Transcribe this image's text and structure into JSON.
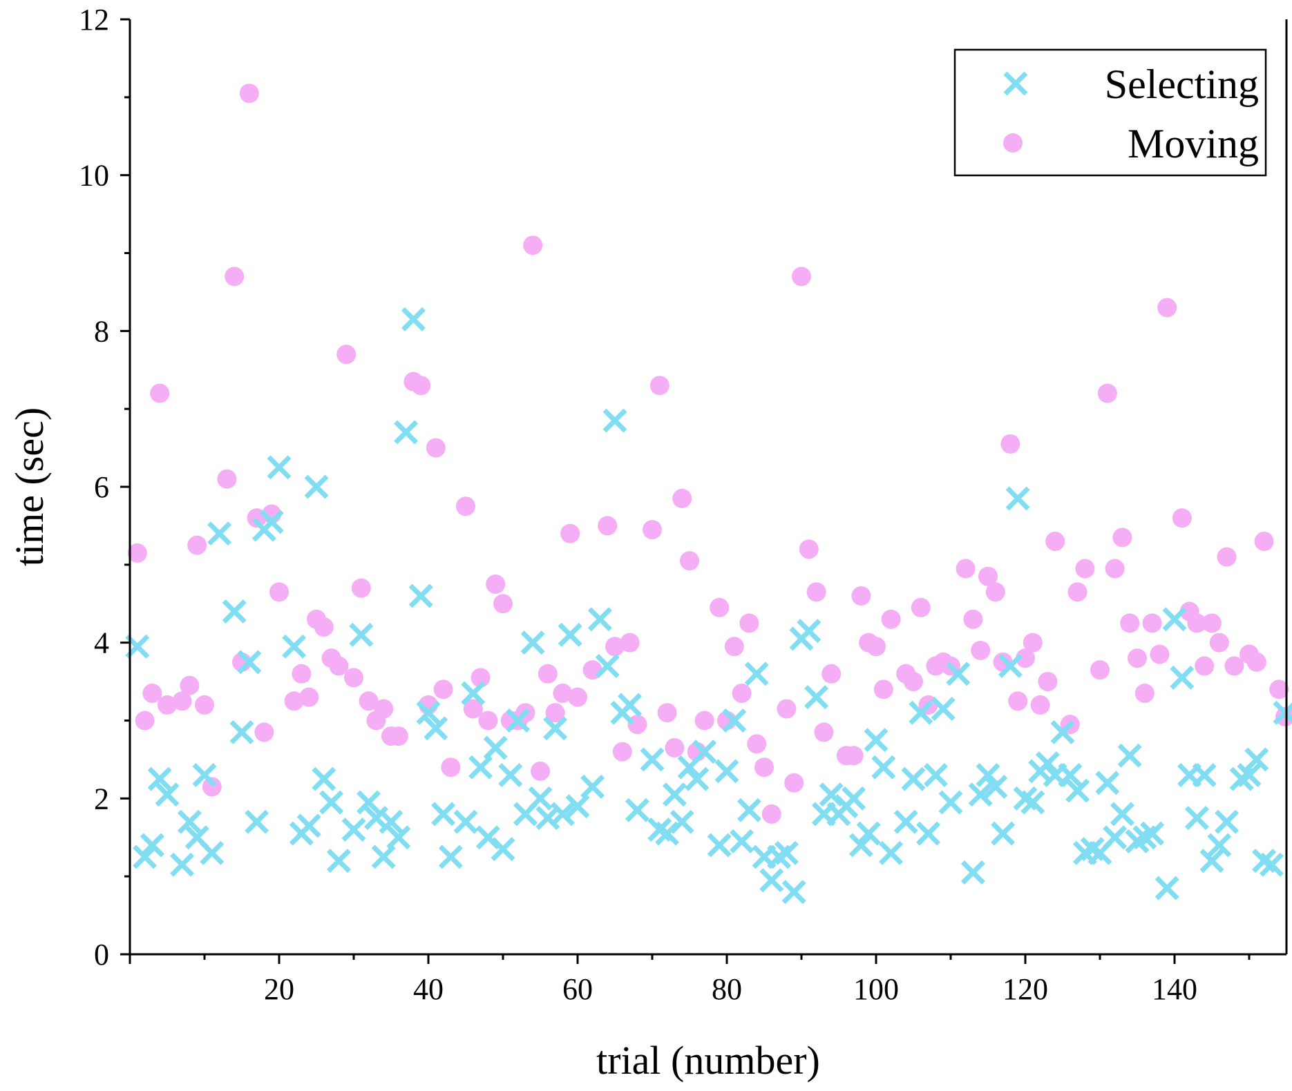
{
  "chart_data": {
    "type": "scatter",
    "title": "",
    "xlabel": "trial (number)",
    "ylabel": "time (sec)",
    "xlim": [
      0,
      155
    ],
    "ylim": [
      0,
      12
    ],
    "xticks": [
      20,
      40,
      60,
      80,
      100,
      120,
      140
    ],
    "yticks": [
      0,
      2,
      4,
      6,
      8,
      10,
      12
    ],
    "grid": false,
    "legend_position": "top-right",
    "series": [
      {
        "name": "Selecting",
        "marker": "x",
        "color": "#80DDF2",
        "points": [
          [
            1,
            3.95
          ],
          [
            2,
            1.25
          ],
          [
            3,
            1.4
          ],
          [
            4,
            2.25
          ],
          [
            5,
            2.05
          ],
          [
            7,
            1.15
          ],
          [
            8,
            1.7
          ],
          [
            9,
            1.5
          ],
          [
            10,
            2.3
          ],
          [
            11,
            1.3
          ],
          [
            12,
            5.4
          ],
          [
            14,
            4.4
          ],
          [
            15,
            2.85
          ],
          [
            16,
            3.75
          ],
          [
            17,
            1.7
          ],
          [
            18,
            5.45
          ],
          [
            19,
            5.55
          ],
          [
            20,
            6.25
          ],
          [
            22,
            3.95
          ],
          [
            23,
            1.55
          ],
          [
            24,
            1.65
          ],
          [
            25,
            6.0
          ],
          [
            26,
            2.25
          ],
          [
            27,
            1.95
          ],
          [
            28,
            1.2
          ],
          [
            30,
            1.6
          ],
          [
            31,
            4.1
          ],
          [
            32,
            1.95
          ],
          [
            33,
            1.75
          ],
          [
            34,
            1.25
          ],
          [
            35,
            1.7
          ],
          [
            36,
            1.5
          ],
          [
            37,
            6.7
          ],
          [
            38,
            8.15
          ],
          [
            39,
            4.6
          ],
          [
            40,
            3.1
          ],
          [
            41,
            2.9
          ],
          [
            42,
            1.8
          ],
          [
            43,
            1.25
          ],
          [
            45,
            1.7
          ],
          [
            46,
            3.35
          ],
          [
            47,
            2.4
          ],
          [
            48,
            1.5
          ],
          [
            49,
            2.65
          ],
          [
            50,
            1.35
          ],
          [
            51,
            2.3
          ],
          [
            52,
            3.0
          ],
          [
            53,
            1.8
          ],
          [
            54,
            4.0
          ],
          [
            55,
            2.0
          ],
          [
            56,
            1.75
          ],
          [
            57,
            2.9
          ],
          [
            58,
            1.8
          ],
          [
            59,
            4.1
          ],
          [
            60,
            1.9
          ],
          [
            62,
            2.15
          ],
          [
            63,
            4.3
          ],
          [
            64,
            3.7
          ],
          [
            65,
            6.85
          ],
          [
            66,
            3.1
          ],
          [
            67,
            3.2
          ],
          [
            68,
            1.85
          ],
          [
            70,
            2.5
          ],
          [
            71,
            1.6
          ],
          [
            72,
            1.55
          ],
          [
            73,
            2.05
          ],
          [
            74,
            1.7
          ],
          [
            75,
            2.4
          ],
          [
            76,
            2.25
          ],
          [
            77,
            2.6
          ],
          [
            79,
            1.4
          ],
          [
            80,
            2.35
          ],
          [
            81,
            3.0
          ],
          [
            82,
            1.45
          ],
          [
            83,
            1.85
          ],
          [
            84,
            3.6
          ],
          [
            85,
            1.25
          ],
          [
            86,
            0.95
          ],
          [
            87,
            1.25
          ],
          [
            88,
            1.3
          ],
          [
            89,
            0.8
          ],
          [
            90,
            4.05
          ],
          [
            91,
            4.15
          ],
          [
            92,
            3.3
          ],
          [
            93,
            1.8
          ],
          [
            94,
            2.05
          ],
          [
            95,
            1.8
          ],
          [
            96,
            1.9
          ],
          [
            97,
            2.0
          ],
          [
            98,
            1.4
          ],
          [
            99,
            1.55
          ],
          [
            100,
            2.75
          ],
          [
            101,
            2.4
          ],
          [
            102,
            1.3
          ],
          [
            104,
            1.7
          ],
          [
            105,
            2.25
          ],
          [
            106,
            3.1
          ],
          [
            107,
            1.55
          ],
          [
            108,
            2.3
          ],
          [
            109,
            3.15
          ],
          [
            110,
            1.95
          ],
          [
            111,
            3.6
          ],
          [
            113,
            1.05
          ],
          [
            114,
            2.05
          ],
          [
            115,
            2.3
          ],
          [
            116,
            2.15
          ],
          [
            117,
            1.55
          ],
          [
            118,
            3.7
          ],
          [
            119,
            5.85
          ],
          [
            120,
            2.0
          ],
          [
            121,
            1.95
          ],
          [
            122,
            2.35
          ],
          [
            123,
            2.45
          ],
          [
            124,
            2.3
          ],
          [
            125,
            2.85
          ],
          [
            126,
            2.3
          ],
          [
            127,
            2.1
          ],
          [
            128,
            1.3
          ],
          [
            129,
            1.35
          ],
          [
            130,
            1.3
          ],
          [
            131,
            2.2
          ],
          [
            132,
            1.5
          ],
          [
            133,
            1.8
          ],
          [
            134,
            2.55
          ],
          [
            135,
            1.45
          ],
          [
            136,
            1.5
          ],
          [
            137,
            1.55
          ],
          [
            139,
            0.85
          ],
          [
            140,
            4.3
          ],
          [
            141,
            3.55
          ],
          [
            142,
            2.3
          ],
          [
            143,
            1.75
          ],
          [
            144,
            2.3
          ],
          [
            145,
            1.2
          ],
          [
            146,
            1.4
          ],
          [
            147,
            1.7
          ],
          [
            149,
            2.25
          ],
          [
            150,
            2.3
          ],
          [
            151,
            2.5
          ],
          [
            152,
            1.2
          ],
          [
            153,
            1.15
          ],
          [
            155,
            3.1
          ]
        ]
      },
      {
        "name": "Moving",
        "marker": "o",
        "color": "#F5AEF5",
        "points": [
          [
            1,
            5.15
          ],
          [
            2,
            3.0
          ],
          [
            3,
            3.35
          ],
          [
            4,
            7.2
          ],
          [
            5,
            3.2
          ],
          [
            7,
            3.25
          ],
          [
            8,
            3.45
          ],
          [
            9,
            5.25
          ],
          [
            10,
            3.2
          ],
          [
            11,
            2.15
          ],
          [
            13,
            6.1
          ],
          [
            14,
            8.7
          ],
          [
            15,
            3.75
          ],
          [
            16,
            11.05
          ],
          [
            17,
            5.6
          ],
          [
            18,
            2.85
          ],
          [
            19,
            5.65
          ],
          [
            20,
            4.65
          ],
          [
            22,
            3.25
          ],
          [
            23,
            3.6
          ],
          [
            24,
            3.3
          ],
          [
            25,
            4.3
          ],
          [
            26,
            4.2
          ],
          [
            27,
            3.8
          ],
          [
            28,
            3.7
          ],
          [
            29,
            7.7
          ],
          [
            30,
            3.55
          ],
          [
            31,
            4.7
          ],
          [
            32,
            3.25
          ],
          [
            33,
            3.0
          ],
          [
            34,
            3.15
          ],
          [
            35,
            2.8
          ],
          [
            36,
            2.8
          ],
          [
            38,
            7.35
          ],
          [
            39,
            7.3
          ],
          [
            40,
            3.2
          ],
          [
            41,
            6.5
          ],
          [
            42,
            3.4
          ],
          [
            43,
            2.4
          ],
          [
            45,
            5.75
          ],
          [
            46,
            3.15
          ],
          [
            47,
            3.55
          ],
          [
            48,
            3.0
          ],
          [
            49,
            4.75
          ],
          [
            50,
            4.5
          ],
          [
            51,
            3.0
          ],
          [
            52,
            3.0
          ],
          [
            53,
            3.1
          ],
          [
            54,
            9.1
          ],
          [
            55,
            2.35
          ],
          [
            56,
            3.6
          ],
          [
            57,
            3.1
          ],
          [
            58,
            3.35
          ],
          [
            59,
            5.4
          ],
          [
            60,
            3.3
          ],
          [
            62,
            3.65
          ],
          [
            64,
            5.5
          ],
          [
            65,
            3.95
          ],
          [
            66,
            2.6
          ],
          [
            67,
            4.0
          ],
          [
            68,
            2.95
          ],
          [
            70,
            5.45
          ],
          [
            71,
            7.3
          ],
          [
            72,
            3.1
          ],
          [
            73,
            2.65
          ],
          [
            74,
            5.85
          ],
          [
            75,
            5.05
          ],
          [
            76,
            2.6
          ],
          [
            77,
            3.0
          ],
          [
            79,
            4.45
          ],
          [
            80,
            3.0
          ],
          [
            81,
            3.95
          ],
          [
            82,
            3.35
          ],
          [
            83,
            4.25
          ],
          [
            84,
            2.7
          ],
          [
            85,
            2.4
          ],
          [
            86,
            1.8
          ],
          [
            88,
            3.15
          ],
          [
            89,
            2.2
          ],
          [
            90,
            8.7
          ],
          [
            91,
            5.2
          ],
          [
            92,
            4.65
          ],
          [
            93,
            2.85
          ],
          [
            94,
            3.6
          ],
          [
            96,
            2.55
          ],
          [
            97,
            2.55
          ],
          [
            98,
            4.6
          ],
          [
            99,
            4.0
          ],
          [
            100,
            3.95
          ],
          [
            101,
            3.4
          ],
          [
            102,
            4.3
          ],
          [
            104,
            3.6
          ],
          [
            105,
            3.5
          ],
          [
            106,
            4.45
          ],
          [
            107,
            3.2
          ],
          [
            108,
            3.7
          ],
          [
            109,
            3.75
          ],
          [
            110,
            3.7
          ],
          [
            112,
            4.95
          ],
          [
            113,
            4.3
          ],
          [
            114,
            3.9
          ],
          [
            115,
            4.85
          ],
          [
            116,
            4.65
          ],
          [
            117,
            3.75
          ],
          [
            118,
            6.55
          ],
          [
            119,
            3.25
          ],
          [
            120,
            3.8
          ],
          [
            121,
            4.0
          ],
          [
            122,
            3.2
          ],
          [
            123,
            3.5
          ],
          [
            124,
            5.3
          ],
          [
            126,
            2.95
          ],
          [
            127,
            4.65
          ],
          [
            128,
            4.95
          ],
          [
            130,
            3.65
          ],
          [
            131,
            7.2
          ],
          [
            132,
            4.95
          ],
          [
            133,
            5.35
          ],
          [
            134,
            4.25
          ],
          [
            135,
            3.8
          ],
          [
            136,
            3.35
          ],
          [
            137,
            4.25
          ],
          [
            138,
            3.85
          ],
          [
            139,
            8.3
          ],
          [
            141,
            5.6
          ],
          [
            142,
            4.4
          ],
          [
            143,
            4.25
          ],
          [
            144,
            3.7
          ],
          [
            145,
            4.25
          ],
          [
            146,
            4.0
          ],
          [
            147,
            5.1
          ],
          [
            148,
            3.7
          ],
          [
            150,
            3.85
          ],
          [
            151,
            3.75
          ],
          [
            152,
            5.3
          ],
          [
            154,
            3.4
          ],
          [
            155,
            3.05
          ]
        ]
      }
    ]
  }
}
